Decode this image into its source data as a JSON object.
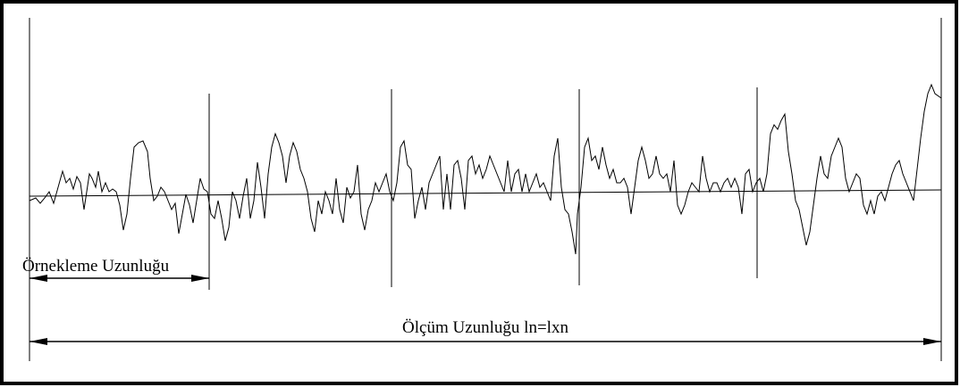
{
  "labels": {
    "sampling_length": "Örnekleme Uzunluğu",
    "measurement_length": "Ölçüm Uzunluğu ln=lxn"
  }
}
